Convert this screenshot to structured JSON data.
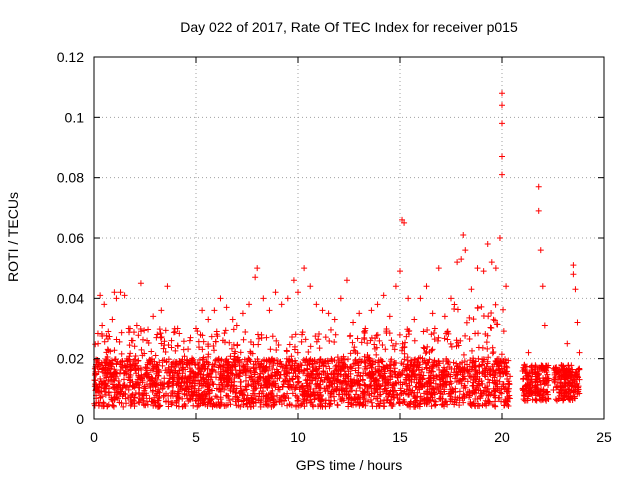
{
  "chart_data": {
    "type": "scatter",
    "title": "Day 022 of 2017, Rate Of TEC Index for receiver p015",
    "xlabel": "GPS time / hours",
    "ylabel": "ROTI / TECUs",
    "xlim": [
      0,
      25
    ],
    "ylim": [
      0,
      0.12
    ],
    "x_ticks": [
      "0",
      "5",
      "10",
      "15",
      "20",
      "25"
    ],
    "y_ticks": [
      "0",
      "0.02",
      "0.04",
      "0.06",
      "0.08",
      "0.1",
      "0.12"
    ],
    "grid": true,
    "marker": "plus",
    "series_color": "#ff0000",
    "data_gaps_hours": [
      [
        20.4,
        21.0
      ],
      [
        21.5,
        21.6
      ],
      [
        22.3,
        22.5
      ]
    ],
    "series": [
      {
        "points": [
          [
            0.1,
            0.018
          ],
          [
            0.2,
            0.025
          ],
          [
            0.3,
            0.041
          ],
          [
            0.4,
            0.031
          ],
          [
            0.5,
            0.038
          ],
          [
            0.7,
            0.029
          ],
          [
            0.9,
            0.033
          ],
          [
            1.0,
            0.042
          ],
          [
            1.1,
            0.04
          ],
          [
            1.3,
            0.042
          ],
          [
            1.5,
            0.041
          ],
          [
            1.7,
            0.03
          ],
          [
            1.9,
            0.026
          ],
          [
            2.1,
            0.031
          ],
          [
            2.3,
            0.045
          ],
          [
            2.6,
            0.026
          ],
          [
            2.9,
            0.034
          ],
          [
            3.1,
            0.028
          ],
          [
            3.3,
            0.036
          ],
          [
            3.6,
            0.044
          ],
          [
            3.8,
            0.026
          ],
          [
            4.1,
            0.03
          ],
          [
            4.4,
            0.023
          ],
          [
            4.7,
            0.026
          ],
          [
            5.0,
            0.03
          ],
          [
            5.3,
            0.036
          ],
          [
            5.6,
            0.033
          ],
          [
            5.9,
            0.036
          ],
          [
            6.2,
            0.04
          ],
          [
            6.5,
            0.037
          ],
          [
            6.8,
            0.033
          ],
          [
            7.0,
            0.031
          ],
          [
            7.3,
            0.035
          ],
          [
            7.6,
            0.038
          ],
          [
            7.9,
            0.047
          ],
          [
            8.0,
            0.05
          ],
          [
            8.3,
            0.04
          ],
          [
            8.6,
            0.036
          ],
          [
            8.9,
            0.042
          ],
          [
            9.2,
            0.038
          ],
          [
            9.5,
            0.04
          ],
          [
            9.8,
            0.046
          ],
          [
            10.0,
            0.042
          ],
          [
            10.3,
            0.05
          ],
          [
            10.6,
            0.044
          ],
          [
            10.9,
            0.038
          ],
          [
            11.2,
            0.036
          ],
          [
            11.5,
            0.035
          ],
          [
            11.8,
            0.033
          ],
          [
            12.1,
            0.04
          ],
          [
            12.4,
            0.046
          ],
          [
            12.7,
            0.032
          ],
          [
            13.0,
            0.035
          ],
          [
            13.3,
            0.03
          ],
          [
            13.6,
            0.036
          ],
          [
            13.9,
            0.038
          ],
          [
            14.2,
            0.041
          ],
          [
            14.5,
            0.034
          ],
          [
            14.8,
            0.044
          ],
          [
            15.0,
            0.049
          ],
          [
            15.1,
            0.066
          ],
          [
            15.2,
            0.065
          ],
          [
            15.4,
            0.04
          ],
          [
            15.7,
            0.033
          ],
          [
            16.0,
            0.04
          ],
          [
            16.3,
            0.044
          ],
          [
            16.6,
            0.035
          ],
          [
            16.9,
            0.05
          ],
          [
            17.2,
            0.034
          ],
          [
            17.5,
            0.04
          ],
          [
            17.8,
            0.052
          ],
          [
            18.0,
            0.053
          ],
          [
            18.1,
            0.061
          ],
          [
            18.2,
            0.056
          ],
          [
            18.5,
            0.043
          ],
          [
            18.8,
            0.05
          ],
          [
            19.1,
            0.049
          ],
          [
            19.3,
            0.058
          ],
          [
            19.5,
            0.052
          ],
          [
            19.7,
            0.05
          ],
          [
            19.9,
            0.06
          ],
          [
            20.0,
            0.108
          ],
          [
            20.0,
            0.104
          ],
          [
            20.0,
            0.098
          ],
          [
            20.0,
            0.087
          ],
          [
            20.0,
            0.081
          ],
          [
            20.2,
            0.044
          ],
          [
            21.1,
            0.018
          ],
          [
            21.3,
            0.022
          ],
          [
            21.8,
            0.077
          ],
          [
            21.8,
            0.069
          ],
          [
            21.9,
            0.056
          ],
          [
            22.0,
            0.044
          ],
          [
            22.1,
            0.031
          ],
          [
            22.6,
            0.013
          ],
          [
            22.9,
            0.011
          ],
          [
            23.2,
            0.025
          ],
          [
            23.5,
            0.051
          ],
          [
            23.5,
            0.048
          ],
          [
            23.6,
            0.043
          ],
          [
            23.7,
            0.032
          ],
          [
            23.8,
            0.022
          ]
        ]
      }
    ]
  }
}
